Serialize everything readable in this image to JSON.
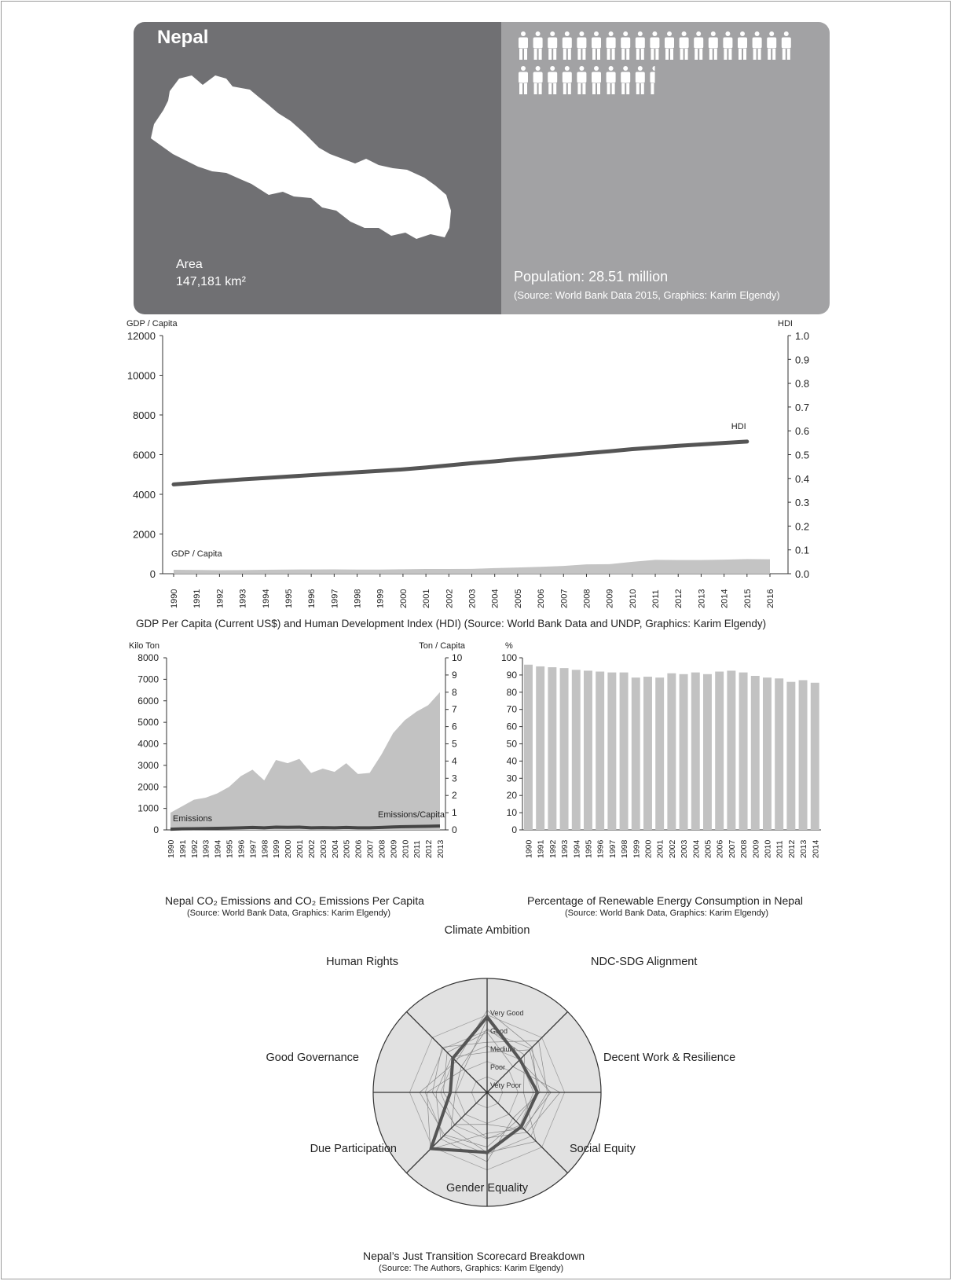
{
  "banner": {
    "country": "Nepal",
    "area_label": "Area",
    "area_value": "147,181 km²",
    "population_label": "Population: 28.51 million",
    "source": "(Source: World Bank Data 2015, Graphics: Karim Elgendy)",
    "people_icons": 28.51,
    "colors": {
      "left": "#707073",
      "right": "#a2a2a4"
    }
  },
  "chart_data": [
    {
      "type": "line",
      "caption": "GDP Per Capita (Current US$) and Human Development Index (HDI) (Source: World Bank Data and UNDP, Graphics: Karim Elgendy)",
      "y_left_label": "GDP / Capita",
      "y_right_label": "HDI",
      "y_left_ticks": [
        "12000",
        "10000",
        "8000",
        "6000",
        "4000",
        "2000",
        "0"
      ],
      "y_right_ticks": [
        "1.0",
        "0.9",
        "0.8",
        "0.7",
        "0.6",
        "0.5",
        "0.4",
        "0.3",
        "0.2",
        "0.1",
        "0.0"
      ],
      "ylim_left": [
        0,
        12000
      ],
      "ylim_right": [
        0,
        1.0
      ],
      "x": [
        "1990",
        "1991",
        "1992",
        "1993",
        "1994",
        "1995",
        "1996",
        "1997",
        "1998",
        "1999",
        "2000",
        "2001",
        "2002",
        "2003",
        "2004",
        "2005",
        "2006",
        "2007",
        "2008",
        "2009",
        "2010",
        "2011",
        "2012",
        "2013",
        "2014",
        "2015",
        "2016"
      ],
      "series": [
        {
          "name": "GDP / Capita",
          "kind": "area",
          "axis": "left",
          "color": "#c4c4c4",
          "values": [
            200,
            190,
            180,
            185,
            200,
            210,
            215,
            220,
            210,
            210,
            225,
            240,
            240,
            245,
            280,
            310,
            345,
            390,
            470,
            480,
            600,
            700,
            690,
            690,
            710,
            740,
            730
          ]
        },
        {
          "name": "HDI",
          "kind": "line",
          "axis": "right",
          "color": "#555555",
          "values": [
            0.375,
            0.382,
            0.389,
            0.396,
            0.402,
            0.408,
            0.414,
            0.42,
            0.426,
            0.432,
            0.438,
            0.446,
            0.455,
            0.464,
            0.472,
            0.481,
            0.489,
            0.497,
            0.506,
            0.514,
            0.523,
            0.53,
            0.537,
            0.543,
            0.549,
            0.555,
            null
          ]
        }
      ]
    },
    {
      "type": "area",
      "caption": "Nepal CO₂ Emissions and CO₂ Emissions Per Capita",
      "source": "(Source: World Bank Data, Graphics: Karim Elgendy)",
      "y_left_label": "Kilo Ton",
      "y_right_label": "Ton / Capita",
      "y_left_ticks": [
        "8000",
        "7000",
        "6000",
        "5000",
        "4000",
        "3000",
        "2000",
        "1000",
        "0"
      ],
      "y_right_ticks": [
        "10",
        "9",
        "8",
        "7",
        "6",
        "5",
        "4",
        "3",
        "2",
        "1",
        "0"
      ],
      "ylim_left": [
        0,
        8000
      ],
      "ylim_right": [
        0,
        10
      ],
      "x": [
        "1990",
        "1991",
        "1992",
        "1993",
        "1994",
        "1995",
        "1996",
        "1997",
        "1998",
        "1999",
        "2000",
        "2001",
        "2002",
        "2003",
        "2004",
        "2005",
        "2006",
        "2007",
        "2008",
        "2009",
        "2010",
        "2011",
        "2012",
        "2013"
      ],
      "series": [
        {
          "name": "Emissions",
          "kind": "area",
          "axis": "left",
          "color": "#c2c2c2",
          "values": [
            800,
            1100,
            1400,
            1500,
            1700,
            2000,
            2500,
            2800,
            2300,
            3250,
            3100,
            3300,
            2650,
            2850,
            2700,
            3100,
            2600,
            2650,
            3500,
            4500,
            5100,
            5500,
            5800,
            6400
          ]
        },
        {
          "name": "Emissions/Capita",
          "kind": "line",
          "axis": "right",
          "color": "#444444",
          "values": [
            0.04,
            0.06,
            0.07,
            0.08,
            0.09,
            0.1,
            0.12,
            0.14,
            0.12,
            0.16,
            0.15,
            0.16,
            0.12,
            0.13,
            0.12,
            0.14,
            0.12,
            0.12,
            0.14,
            0.17,
            0.19,
            0.2,
            0.21,
            0.23
          ]
        }
      ]
    },
    {
      "type": "bar",
      "caption": "Percentage of Renewable Energy Consumption in Nepal",
      "source": "(Source: World Bank Data, Graphics: Karim Elgendy)",
      "ylabel": "%",
      "ylim": [
        0,
        100
      ],
      "y_ticks": [
        "100",
        "90",
        "80",
        "70",
        "60",
        "50",
        "40",
        "30",
        "20",
        "10",
        "0"
      ],
      "color": "#c2c2c2",
      "categories": [
        "1990",
        "1991",
        "1992",
        "1993",
        "1994",
        "1995",
        "1996",
        "1997",
        "1998",
        "1999",
        "2000",
        "2001",
        "2002",
        "2003",
        "2004",
        "2005",
        "2006",
        "2007",
        "2008",
        "2009",
        "2010",
        "2011",
        "2012",
        "2013",
        "2014"
      ],
      "values": [
        96,
        95,
        94.5,
        94,
        93,
        92.5,
        92,
        91.5,
        91.5,
        88.5,
        89,
        88.5,
        91,
        90.5,
        91.5,
        90.5,
        92,
        92.5,
        91.5,
        89.5,
        88.5,
        88,
        86,
        87,
        85.5
      ]
    },
    {
      "type": "radar",
      "caption": "Nepal’s Just Transition Scorecard Breakdown",
      "source": "(Source: The Authors, Graphics: Karim Elgendy)",
      "axes": [
        "Climate Ambition",
        "NDC-SDG Alignment",
        "Decent Work & Resilience",
        "Social Equity",
        "Gender Equality",
        "Due Participation",
        "Good Governance",
        "Human Rights"
      ],
      "levels": [
        "Very Good",
        "Good",
        "Medium",
        "Poor",
        "Very Poor"
      ],
      "series": [
        {
          "name": "Nepal",
          "color": "#555555",
          "values": [
            0.78,
            0.48,
            0.52,
            0.5,
            0.62,
            0.82,
            0.38,
            0.5
          ]
        }
      ],
      "background_series_color": "#888888"
    }
  ]
}
